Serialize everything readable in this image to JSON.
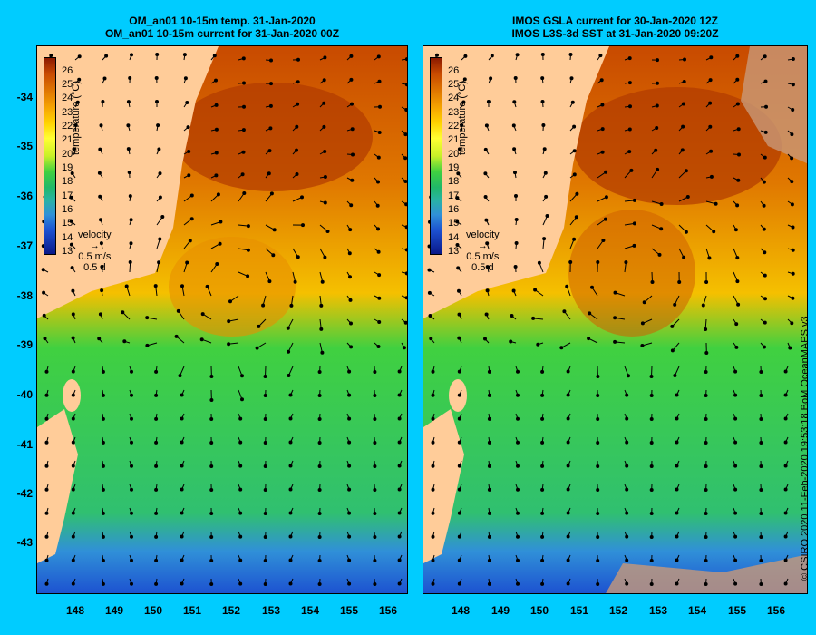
{
  "left_panel": {
    "title_line1": "OM_an01 10-15m temp. 31-Jan-2020",
    "title_line2": "OM_an01 10-15m current for 31-Jan-2020 00Z"
  },
  "right_panel": {
    "title_line1": "IMOS GSLA current for 30-Jan-2020 12Z",
    "title_line2": "IMOS L3S-3d SST at 31-Jan-2020 09:20Z"
  },
  "y_ticks": [
    "-34",
    "-35",
    "-36",
    "-37",
    "-38",
    "-39",
    "-40",
    "-41",
    "-42",
    "-43"
  ],
  "x_ticks": [
    "148",
    "149",
    "150",
    "151",
    "152",
    "153",
    "154",
    "155",
    "156"
  ],
  "colorbar": {
    "title": "temperature (°C)",
    "labels": [
      "26",
      "25",
      "24",
      "23",
      "22",
      "21",
      "20",
      "19",
      "18",
      "17",
      "16",
      "15",
      "14",
      "13"
    ]
  },
  "velocity_legend": {
    "label": "velocity",
    "speed": "0.5 m/s",
    "duration": "0.5 d"
  },
  "credit": "© CSIRO 2020   11-Feb-2020 19:53:18 BoM OceanMAPS v3",
  "colors": {
    "background": "#00ccff",
    "land": "#ffcc99",
    "warm": "#c84a00",
    "cool": "#1c50d0"
  }
}
